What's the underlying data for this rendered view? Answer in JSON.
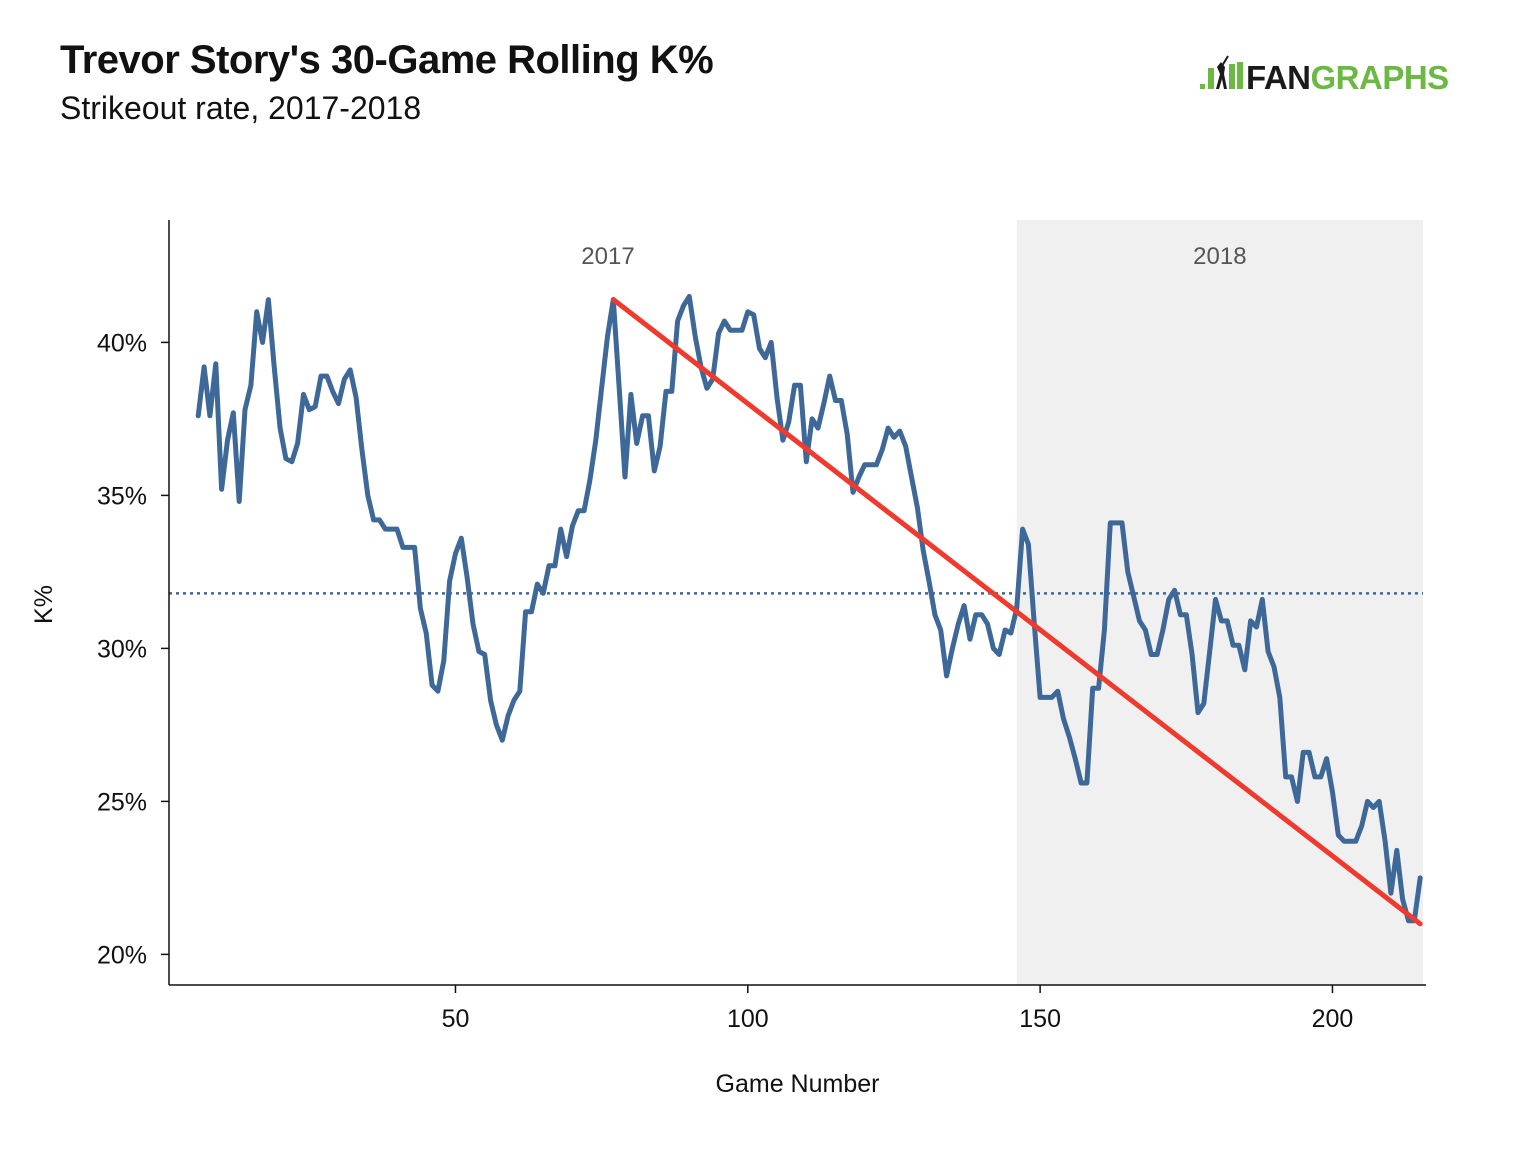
{
  "header": {
    "title": "Trevor Story's 30-Game Rolling K%",
    "subtitle": "Strikeout rate, 2017-2018"
  },
  "logo": {
    "text": "FANGRAPHS",
    "icon": "batter-silhouette-icon",
    "colors": {
      "brand_green": "#6bb843",
      "text_dark": "#1a1a1a"
    }
  },
  "chart_data": {
    "type": "line",
    "title": "Trevor Story's 30-Game Rolling K%",
    "subtitle": "Strikeout rate, 2017-2018",
    "xlabel": "Game Number",
    "ylabel": "K%",
    "xlim": [
      1,
      216
    ],
    "ylim": [
      19,
      44
    ],
    "x_ticks": [
      50,
      100,
      150,
      200
    ],
    "x_tick_labels": [
      "50",
      "100",
      "150",
      "200"
    ],
    "y_ticks": [
      20,
      25,
      30,
      35,
      40
    ],
    "y_tick_labels": [
      "20%",
      "25%",
      "30%",
      "35%",
      "40%"
    ],
    "grid": false,
    "regions": [
      {
        "label": "2017",
        "x_start": 1,
        "x_end": 146,
        "shaded": false,
        "color": "#ffffff"
      },
      {
        "label": "2018",
        "x_start": 146,
        "x_end": 216,
        "shaded": true,
        "color": "#f0f0f0"
      }
    ],
    "reference_line": {
      "y": 31.8,
      "style": "dotted",
      "color": "#3d6898"
    },
    "trend_line": {
      "x": [
        77,
        215
      ],
      "y": [
        41.4,
        21.0
      ],
      "color": "#f03a2e"
    },
    "series": [
      {
        "color": "#3d6898",
        "x": [
          6,
          7,
          8,
          9,
          10,
          11,
          12,
          13,
          14,
          15,
          16,
          17,
          18,
          19,
          20,
          21,
          22,
          23,
          24,
          25,
          26,
          27,
          28,
          29,
          30,
          31,
          32,
          33,
          34,
          35,
          36,
          37,
          38,
          39,
          40,
          41,
          42,
          43,
          44,
          45,
          46,
          47,
          48,
          49,
          50,
          51,
          52,
          53,
          54,
          55,
          56,
          57,
          58,
          59,
          60,
          61,
          62,
          63,
          64,
          65,
          66,
          67,
          68,
          69,
          70,
          71,
          72,
          73,
          74,
          75,
          76,
          77,
          78,
          79,
          80,
          81,
          82,
          83,
          84,
          85,
          86,
          87,
          88,
          89,
          90,
          91,
          92,
          93,
          94,
          95,
          96,
          97,
          98,
          99,
          100,
          101,
          102,
          103,
          104,
          105,
          106,
          107,
          108,
          109,
          110,
          111,
          112,
          113,
          114,
          115,
          116,
          117,
          118,
          119,
          120,
          121,
          122,
          123,
          124,
          125,
          126,
          127,
          128,
          129,
          130,
          131,
          132,
          133,
          134,
          135,
          136,
          137,
          138,
          139,
          140,
          141,
          142,
          143,
          144,
          145,
          146,
          147,
          148,
          149,
          150,
          151,
          152,
          153,
          154,
          155,
          156,
          157,
          158,
          159,
          160,
          161,
          162,
          163,
          164,
          165,
          166,
          167,
          168,
          169,
          170,
          171,
          172,
          173,
          174,
          175,
          176,
          177,
          178,
          179,
          180,
          181,
          182,
          183,
          184,
          185,
          186,
          187,
          188,
          189,
          190,
          191,
          192,
          193,
          194,
          195,
          196,
          197,
          198,
          199,
          200,
          201,
          202,
          203,
          204,
          205,
          206,
          207,
          208,
          209,
          210,
          211,
          212,
          213,
          214,
          215
        ],
        "y": [
          37.6,
          39.2,
          37.6,
          39.3,
          35.2,
          36.8,
          37.7,
          34.8,
          37.8,
          38.6,
          41.0,
          40.0,
          41.4,
          39.2,
          37.2,
          36.2,
          36.1,
          36.7,
          38.3,
          37.8,
          37.9,
          38.9,
          38.9,
          38.4,
          38.0,
          38.8,
          39.1,
          38.2,
          36.5,
          35.0,
          34.2,
          34.2,
          33.9,
          33.9,
          33.9,
          33.3,
          33.3,
          33.3,
          31.3,
          30.5,
          28.8,
          28.6,
          29.6,
          32.2,
          33.1,
          33.6,
          32.3,
          30.8,
          29.9,
          29.8,
          28.3,
          27.5,
          27.0,
          27.8,
          28.3,
          28.6,
          31.2,
          31.2,
          32.1,
          31.8,
          32.7,
          32.7,
          33.9,
          33.0,
          34.0,
          34.5,
          34.5,
          35.5,
          36.8,
          38.5,
          40.2,
          41.4,
          38.5,
          35.6,
          38.3,
          36.7,
          37.6,
          37.6,
          35.8,
          36.6,
          38.4,
          38.4,
          40.7,
          41.2,
          41.5,
          40.2,
          39.2,
          38.5,
          38.8,
          40.3,
          40.7,
          40.4,
          40.4,
          40.4,
          41.0,
          40.9,
          39.8,
          39.5,
          40.0,
          38.2,
          36.8,
          37.4,
          38.6,
          38.6,
          36.1,
          37.5,
          37.2,
          38.0,
          38.9,
          38.1,
          38.1,
          37.0,
          35.1,
          35.6,
          36.0,
          36.0,
          36.0,
          36.5,
          37.2,
          36.9,
          37.1,
          36.6,
          35.6,
          34.6,
          33.2,
          32.2,
          31.1,
          30.6,
          29.1,
          30.0,
          30.8,
          31.4,
          30.3,
          31.1,
          31.1,
          30.8,
          30.0,
          29.8,
          30.6,
          30.5,
          31.3,
          33.9,
          33.4,
          30.8,
          28.4,
          28.4,
          28.4,
          28.6,
          27.7,
          27.1,
          26.4,
          25.6,
          25.6,
          28.7,
          28.7,
          30.6,
          34.1,
          34.1,
          34.1,
          32.5,
          31.7,
          30.9,
          30.6,
          29.8,
          29.8,
          30.6,
          31.6,
          31.9,
          31.1,
          31.1,
          29.8,
          27.9,
          28.2,
          29.9,
          31.6,
          30.9,
          30.9,
          30.1,
          30.1,
          29.3,
          30.9,
          30.7,
          31.6,
          29.9,
          29.4,
          28.4,
          25.8,
          25.8,
          25.0,
          26.6,
          26.6,
          25.8,
          25.8,
          26.4,
          25.3,
          23.9,
          23.7,
          23.7,
          23.7,
          24.2,
          25.0,
          24.8,
          25.0,
          23.7,
          22.0,
          23.4,
          21.8,
          21.1,
          21.1,
          22.5
        ]
      }
    ]
  }
}
